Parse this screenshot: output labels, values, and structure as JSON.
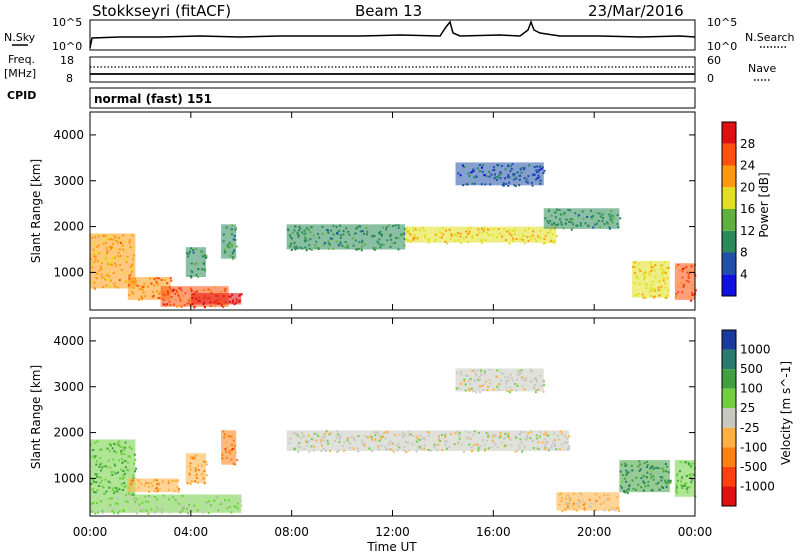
{
  "header": {
    "station": "Stokkseyri (fitACF)",
    "beam": "Beam 13",
    "date": "23/Mar/2016"
  },
  "side_labels": {
    "nsky": "N.Sky",
    "nsearch": "N.Search",
    "freq": "Freq.",
    "freq_unit": "[MHz]",
    "cpid": "CPID",
    "nave": "Nave"
  },
  "noise_panel": {
    "left_ticks": [
      "10^5",
      "10^0"
    ],
    "right_ticks": [
      "10^5",
      "10^0"
    ]
  },
  "freq_panel": {
    "left_ticks": [
      "18",
      "8"
    ],
    "right_ticks": [
      "60",
      "0"
    ]
  },
  "cpid_text": "normal (fast) 151",
  "x_axis": {
    "label": "Time UT",
    "ticks": [
      "00:00",
      "04:00",
      "08:00",
      "12:00",
      "16:00",
      "20:00",
      "00:00"
    ]
  },
  "y_axis": {
    "label": "Slant Range [km]",
    "ticks": [
      "1000",
      "2000",
      "3000",
      "4000"
    ]
  },
  "power_bar": {
    "label": "Power [dB]",
    "ticks": [
      "4",
      "8",
      "12",
      "16",
      "20",
      "24",
      "28"
    ],
    "colors": [
      "#1010e0",
      "#2050a8",
      "#2a8a5a",
      "#60b040",
      "#e0e020",
      "#ff9a10",
      "#ff5010",
      "#e01010"
    ]
  },
  "velocity_bar": {
    "label": "Velocity [m s^-1]",
    "ticks": [
      "1000",
      "500",
      "100",
      "25",
      "-25",
      "-100",
      "-500",
      "-1000"
    ],
    "colors": [
      "#1a3aa0",
      "#2a7a70",
      "#40a040",
      "#70d040",
      "#c8c8c0",
      "#ffb040",
      "#ff8010",
      "#ff4010",
      "#e01010"
    ]
  },
  "chart_data": {
    "type": "heatmap",
    "title": "Stokkseyri (fitACF) Beam 13 23/Mar/2016",
    "xlabel": "Time UT",
    "ylabel": "Slant Range [km]",
    "xlim_hours": [
      0,
      24
    ],
    "ylim_km": [
      180,
      4500
    ],
    "panels": [
      {
        "name": "Power",
        "unit": "dB",
        "range": [
          0,
          30
        ],
        "regions": [
          {
            "t": [
              0.0,
              1.8
            ],
            "r": [
              650,
              1850
            ],
            "value": 20
          },
          {
            "t": [
              1.5,
              3.2
            ],
            "r": [
              400,
              900
            ],
            "value": 22
          },
          {
            "t": [
              2.8,
              5.5
            ],
            "r": [
              250,
              700
            ],
            "value": 24
          },
          {
            "t": [
              4.0,
              6.0
            ],
            "r": [
              300,
              550
            ],
            "value": 28
          },
          {
            "t": [
              3.8,
              4.6
            ],
            "r": [
              900,
              1550
            ],
            "value": 10
          },
          {
            "t": [
              5.2,
              5.8
            ],
            "r": [
              1300,
              2050
            ],
            "value": 10
          },
          {
            "t": [
              7.8,
              12.5
            ],
            "r": [
              1500,
              2050
            ],
            "value": 10
          },
          {
            "t": [
              12.5,
              18.5
            ],
            "r": [
              1650,
              2000
            ],
            "value": 18
          },
          {
            "t": [
              14.5,
              18.0
            ],
            "r": [
              2900,
              3400
            ],
            "value": 6
          },
          {
            "t": [
              18.0,
              21.0
            ],
            "r": [
              1950,
              2400
            ],
            "value": 10
          },
          {
            "t": [
              21.5,
              23.0
            ],
            "r": [
              450,
              1250
            ],
            "value": 18
          },
          {
            "t": [
              23.2,
              24.0
            ],
            "r": [
              400,
              1200
            ],
            "value": 24
          }
        ]
      },
      {
        "name": "Velocity",
        "unit": "m s^-1",
        "range": [
          -1000,
          1000
        ],
        "regions": [
          {
            "t": [
              0.0,
              1.8
            ],
            "r": [
              650,
              1850
            ],
            "value": 300
          },
          {
            "t": [
              0.0,
              6.0
            ],
            "r": [
              250,
              650
            ],
            "value": 120
          },
          {
            "t": [
              1.5,
              3.5
            ],
            "r": [
              700,
              1000
            ],
            "value": -300
          },
          {
            "t": [
              3.8,
              4.6
            ],
            "r": [
              900,
              1550
            ],
            "value": -300
          },
          {
            "t": [
              5.2,
              5.8
            ],
            "r": [
              1300,
              2050
            ],
            "value": -400
          },
          {
            "t": [
              7.8,
              19.0
            ],
            "r": [
              1600,
              2050
            ],
            "value": 0
          },
          {
            "t": [
              14.5,
              18.0
            ],
            "r": [
              2900,
              3400
            ],
            "value": 0
          },
          {
            "t": [
              18.5,
              21.0
            ],
            "r": [
              300,
              700
            ],
            "value": -200
          },
          {
            "t": [
              21.0,
              23.0
            ],
            "r": [
              700,
              1400
            ],
            "value": 500
          },
          {
            "t": [
              23.2,
              24.0
            ],
            "r": [
              600,
              1400
            ],
            "value": 300
          }
        ]
      }
    ]
  }
}
